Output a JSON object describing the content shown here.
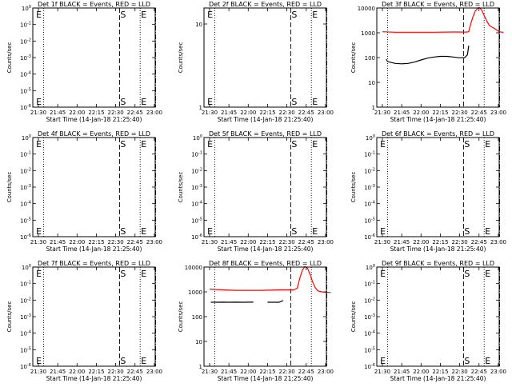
{
  "chart_data": [
    {
      "type": "line",
      "title": "Det 1f BLACK = Events, RED = LLD",
      "xlabel": "Start Time (14-Jan-18 21:25:40)",
      "ylabel": "Counts/sec",
      "x_ticks": [
        "21:30",
        "21:45",
        "22:00",
        "22:15",
        "22:30",
        "22:45",
        "23:00"
      ],
      "y_ticks": [
        "10^0",
        "10^-1",
        "10^-2",
        "10^-3",
        "10^-4",
        "10^-5",
        "10^-6"
      ],
      "y_scale": "log",
      "markers": [
        {
          "label": "E",
          "time": "21:27",
          "style": "none"
        },
        {
          "label": "",
          "time": "21:34",
          "style": "dotted"
        },
        {
          "label": "S",
          "time": "22:33",
          "style": "dashed"
        },
        {
          "label": "E",
          "time": "22:49",
          "style": "dotted"
        },
        {
          "label": "",
          "time": "23:01",
          "style": "dash-dot"
        }
      ],
      "series": []
    },
    {
      "type": "line",
      "title": "Det 2f BLACK = Events, RED = LLD",
      "xlabel": "Start Time (14-Jan-18 21:25:40)",
      "ylabel": "Counts/sec",
      "x_ticks": [
        "21:30",
        "21:45",
        "22:00",
        "22:15",
        "22:30",
        "22:45",
        "23:00"
      ],
      "y_ticks": [
        "10",
        "1"
      ],
      "y_scale": "log",
      "markers": [
        {
          "label": "E",
          "time": "21:27",
          "style": "none"
        },
        {
          "label": "",
          "time": "21:34",
          "style": "dotted"
        },
        {
          "label": "S",
          "time": "22:33",
          "style": "dashed"
        },
        {
          "label": "E",
          "time": "22:49",
          "style": "dotted"
        },
        {
          "label": "",
          "time": "23:01",
          "style": "dash-dot"
        }
      ],
      "series": []
    },
    {
      "type": "line",
      "title": "Det 3f BLACK = Events, RED = LLD",
      "xlabel": "Start Time (14-Jan-18 21:25:40)",
      "ylabel": "Counts/sec",
      "x_ticks": [
        "21:30",
        "21:45",
        "22:00",
        "22:15",
        "22:30",
        "22:45",
        "23:00"
      ],
      "y_ticks": [
        "10000",
        "1000",
        "100",
        "10",
        "1"
      ],
      "y_scale": "log",
      "ylim": [
        1,
        10000
      ],
      "markers": [
        {
          "label": "",
          "time": "21:34",
          "style": "dotted"
        },
        {
          "label": "",
          "time": "22:33",
          "style": "dashed"
        },
        {
          "label": "",
          "time": "22:49",
          "style": "dotted"
        },
        {
          "label": "",
          "time": "23:01",
          "style": "dash-dot"
        }
      ],
      "series": [
        {
          "color": "#ff0000",
          "points": [
            [
              0,
              1100
            ],
            [
              10,
              1050
            ],
            [
              20,
              1050
            ],
            [
              40,
              1050
            ],
            [
              55,
              1080
            ],
            [
              65,
              1070
            ],
            [
              67,
              1100
            ],
            [
              68,
              1800
            ],
            [
              70,
              4000
            ],
            [
              72,
              7500
            ],
            [
              74,
              9800
            ],
            [
              75,
              10500
            ],
            [
              77,
              8500
            ],
            [
              79,
              5000
            ],
            [
              81,
              3000
            ],
            [
              83,
              2000
            ],
            [
              85,
              1700
            ],
            [
              87,
              1500
            ],
            [
              89,
              1250
            ],
            [
              91,
              1100
            ],
            [
              93,
              1050
            ],
            [
              94,
              1050
            ]
          ]
        },
        {
          "color": "#000000",
          "points": [
            [
              3,
              85
            ],
            [
              4,
              70
            ],
            [
              6,
              65
            ],
            [
              10,
              58
            ],
            [
              15,
              56
            ],
            [
              20,
              58
            ],
            [
              25,
              66
            ],
            [
              30,
              80
            ],
            [
              35,
              95
            ],
            [
              40,
              105
            ],
            [
              45,
              112
            ],
            [
              50,
              112
            ],
            [
              55,
              105
            ],
            [
              60,
              98
            ],
            [
              64,
              100
            ],
            [
              66,
              130
            ],
            [
              67,
              300
            ]
          ]
        }
      ]
    },
    {
      "type": "line",
      "title": "Det 4f BLACK = Events, RED = LLD",
      "xlabel": "Start Time (14-Jan-18 21:25:40)",
      "ylabel": "Counts/sec",
      "x_ticks": [
        "21:30",
        "21:45",
        "22:00",
        "22:15",
        "22:30",
        "22:45",
        "23:00"
      ],
      "y_ticks": [
        "10^0",
        "10^-1",
        "10^-2",
        "10^-3",
        "10^-4",
        "10^-5",
        "10^-6"
      ],
      "y_scale": "log",
      "markers": [
        {
          "label": "E",
          "time": "21:27",
          "style": "none"
        },
        {
          "label": "",
          "time": "21:34",
          "style": "dotted"
        },
        {
          "label": "S",
          "time": "22:33",
          "style": "dashed"
        },
        {
          "label": "E",
          "time": "22:49",
          "style": "dotted"
        },
        {
          "label": "",
          "time": "23:01",
          "style": "dash-dot"
        }
      ],
      "series": []
    },
    {
      "type": "line",
      "title": "Det 5f BLACK = Events, RED = LLD",
      "xlabel": "Start Time (14-Jan-18 21:25:40)",
      "ylabel": "Counts/sec",
      "x_ticks": [
        "21:30",
        "21:45",
        "22:00",
        "22:15",
        "22:30",
        "22:45",
        "23:00"
      ],
      "y_ticks": [
        "10^0",
        "10^-1",
        "10^-2",
        "10^-3",
        "10^-4",
        "10^-5",
        "10^-6"
      ],
      "y_scale": "log",
      "markers": [
        {
          "label": "E",
          "time": "21:27",
          "style": "none"
        },
        {
          "label": "",
          "time": "21:34",
          "style": "dotted"
        },
        {
          "label": "S",
          "time": "22:33",
          "style": "dashed"
        },
        {
          "label": "E",
          "time": "22:49",
          "style": "dotted"
        },
        {
          "label": "",
          "time": "23:01",
          "style": "dash-dot"
        }
      ],
      "series": []
    },
    {
      "type": "line",
      "title": "Det 6f BLACK = Events, RED = LLD",
      "xlabel": "Start Time (14-Jan-18 21:25:40)",
      "ylabel": "Counts/sec",
      "x_ticks": [
        "21:30",
        "21:45",
        "22:00",
        "22:15",
        "22:30",
        "22:45",
        "23:00"
      ],
      "y_ticks": [
        "10^0",
        "10^-1",
        "10^-2",
        "10^-3",
        "10^-4",
        "10^-5",
        "10^-6"
      ],
      "y_scale": "log",
      "markers": [
        {
          "label": "E",
          "time": "21:27",
          "style": "none"
        },
        {
          "label": "",
          "time": "21:34",
          "style": "dotted"
        },
        {
          "label": "S",
          "time": "22:33",
          "style": "dashed"
        },
        {
          "label": "E",
          "time": "22:49",
          "style": "dotted"
        },
        {
          "label": "",
          "time": "23:01",
          "style": "dash-dot"
        }
      ],
      "series": []
    },
    {
      "type": "line",
      "title": "Det 7f BLACK = Events, RED = LLD",
      "xlabel": "Start Time (14-Jan-18 21:25:40)",
      "ylabel": "Counts/sec",
      "x_ticks": [
        "21:30",
        "21:45",
        "22:00",
        "22:15",
        "22:30",
        "22:45",
        "23:00"
      ],
      "y_ticks": [
        "10^0",
        "10^-1",
        "10^-2",
        "10^-3",
        "10^-4",
        "10^-5",
        "10^-6"
      ],
      "y_scale": "log",
      "markers": [
        {
          "label": "E",
          "time": "21:27",
          "style": "none"
        },
        {
          "label": "",
          "time": "21:34",
          "style": "dotted"
        },
        {
          "label": "S",
          "time": "22:33",
          "style": "dashed"
        },
        {
          "label": "E",
          "time": "22:49",
          "style": "dotted"
        },
        {
          "label": "",
          "time": "23:01",
          "style": "dash-dot"
        }
      ],
      "series": []
    },
    {
      "type": "line",
      "title": "Det 8f BLACK = Events, RED = LLD",
      "xlabel": "Start Time (14-Jan-18 21:25:40)",
      "ylabel": "Counts/sec",
      "x_ticks": [
        "21:30",
        "21:45",
        "22:00",
        "22:15",
        "22:30",
        "22:45",
        "23:00"
      ],
      "y_ticks": [
        "10000",
        "1000",
        "100",
        "10",
        "1"
      ],
      "y_scale": "log",
      "ylim": [
        1,
        10000
      ],
      "markers": [
        {
          "label": "",
          "time": "21:34",
          "style": "dotted"
        },
        {
          "label": "",
          "time": "22:33",
          "style": "dashed"
        },
        {
          "label": "",
          "time": "22:49",
          "style": "dotted"
        },
        {
          "label": "",
          "time": "23:01",
          "style": "dash-dot"
        }
      ],
      "series": [
        {
          "color": "#ff0000",
          "points": [
            [
              0,
              1300
            ],
            [
              10,
              1200
            ],
            [
              20,
              1150
            ],
            [
              40,
              1150
            ],
            [
              55,
              1200
            ],
            [
              65,
              1200
            ],
            [
              68,
              1400
            ],
            [
              70,
              3500
            ],
            [
              72,
              7500
            ],
            [
              74,
              10500
            ],
            [
              76,
              9000
            ],
            [
              78,
              5000
            ],
            [
              80,
              2500
            ],
            [
              82,
              1500
            ],
            [
              84,
              1100
            ],
            [
              87,
              1000
            ],
            [
              90,
              950
            ],
            [
              94,
              950
            ]
          ]
        },
        {
          "color": "#000000",
          "points": [
            [
              1,
              380
            ],
            [
              5,
              380
            ],
            [
              10,
              385
            ],
            [
              15,
              380
            ],
            [
              20,
              385
            ],
            [
              25,
              380
            ],
            [
              28,
              380
            ],
            [
              30,
              385
            ],
            [
              34,
              385
            ]
          ]
        },
        {
          "color": "#000000",
          "points": [
            [
              45,
              380
            ],
            [
              50,
              380
            ],
            [
              54,
              380
            ],
            [
              55,
              400
            ],
            [
              56,
              420
            ],
            [
              57,
              450
            ]
          ]
        }
      ]
    },
    {
      "type": "line",
      "title": "Det 9f BLACK = Events, RED = LLD",
      "xlabel": "Start Time (14-Jan-18 21:25:40)",
      "ylabel": "Counts/sec",
      "x_ticks": [
        "21:30",
        "21:45",
        "22:00",
        "22:15",
        "22:30",
        "22:45",
        "23:00"
      ],
      "y_ticks": [
        "10^0",
        "10^-1",
        "10^-2",
        "10^-3",
        "10^-4",
        "10^-5",
        "10^-6"
      ],
      "y_scale": "log",
      "markers": [
        {
          "label": "E",
          "time": "21:27",
          "style": "none"
        },
        {
          "label": "",
          "time": "21:34",
          "style": "dotted"
        },
        {
          "label": "S",
          "time": "22:33",
          "style": "dashed"
        },
        {
          "label": "E",
          "time": "22:49",
          "style": "dotted"
        },
        {
          "label": "",
          "time": "23:01",
          "style": "dash-dot"
        }
      ],
      "series": []
    }
  ]
}
